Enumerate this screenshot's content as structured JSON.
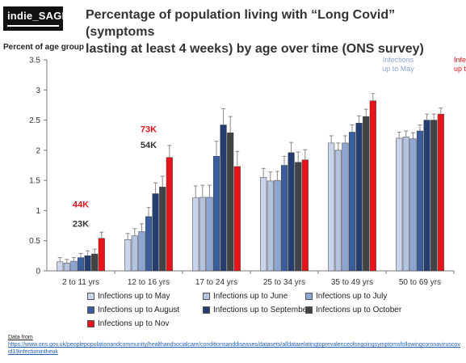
{
  "header": {
    "logo_text": "indie_SAGE",
    "title_line1": "Percentage of population living with “Long Covid” (symptoms",
    "title_line2": "lasting at least 4 weeks) by age over time (ONS survey)"
  },
  "chart_data": {
    "type": "bar",
    "title": "Percentage of population living with “Long Covid” (symptoms lasting at least 4 weeks) by age over time (ONS survey)",
    "ylabel": "Percent of age group",
    "xlabel": "",
    "ylim": [
      0,
      3.5
    ],
    "yticks": [
      "0",
      "0.5",
      "1",
      "1.5",
      "2",
      "2.5",
      "3",
      "3.5"
    ],
    "grid": false,
    "error_bars": true,
    "legend_position": "bottom",
    "categories": [
      "2 to 11 yrs",
      "12 to 16 yrs",
      "17 to 24 yrs",
      "25 to 34 yrs",
      "35 to 49 yrs",
      "50 to 69 yrs"
    ],
    "series": [
      {
        "name": "Infections up to May",
        "color": "#c9d5ea",
        "values": [
          0.15,
          0.52,
          1.21,
          1.55,
          2.12,
          2.2
        ],
        "err": [
          0.07,
          0.1,
          0.2,
          0.15,
          0.12,
          0.1
        ]
      },
      {
        "name": "Infections up to June",
        "color": "#b3c3e0",
        "values": [
          0.13,
          0.58,
          1.22,
          1.49,
          2.0,
          2.22
        ],
        "err": [
          0.06,
          0.12,
          0.2,
          0.15,
          0.12,
          0.1
        ]
      },
      {
        "name": "Infections up to July",
        "color": "#8ea6d3",
        "values": [
          0.16,
          0.65,
          1.22,
          1.5,
          2.12,
          2.19
        ],
        "err": [
          0.06,
          0.13,
          0.2,
          0.15,
          0.12,
          0.1
        ]
      },
      {
        "name": "Infections up to August",
        "color": "#3b5e9f",
        "values": [
          0.22,
          0.9,
          1.9,
          1.75,
          2.3,
          2.32
        ],
        "err": [
          0.07,
          0.15,
          0.25,
          0.15,
          0.12,
          0.1
        ]
      },
      {
        "name": "Infections up to September",
        "color": "#233e6f",
        "values": [
          0.25,
          1.28,
          2.42,
          1.96,
          2.45,
          2.5
        ],
        "err": [
          0.08,
          0.18,
          0.27,
          0.17,
          0.12,
          0.1
        ]
      },
      {
        "name": "Infections up to October",
        "color": "#404347",
        "values": [
          0.28,
          1.39,
          2.29,
          1.8,
          2.56,
          2.5
        ],
        "err": [
          0.08,
          0.18,
          0.27,
          0.17,
          0.12,
          0.1
        ]
      },
      {
        "name": "Infections up to Nov",
        "color": "#e8141b",
        "values": [
          0.54,
          1.88,
          1.73,
          1.84,
          2.82,
          2.6
        ],
        "err": [
          0.1,
          0.2,
          0.25,
          0.17,
          0.12,
          0.1
        ]
      }
    ],
    "annotations": [
      {
        "text": "44K",
        "color": "#e8141b",
        "category": 0,
        "y": 1.05
      },
      {
        "text": "23K",
        "color": "#333333",
        "category": 0,
        "y": 0.73
      },
      {
        "text": "73K",
        "color": "#e8141b",
        "category": 1,
        "y": 2.3
      },
      {
        "text": "54K",
        "color": "#333333",
        "category": 1,
        "y": 2.04
      }
    ],
    "corner_labels": [
      {
        "lines": [
          "Infections",
          "up to May"
        ],
        "color": "#8ea6d3"
      },
      {
        "lines": [
          "Infections",
          "up to Nov"
        ],
        "color": "#e8141b"
      }
    ]
  },
  "source": {
    "label": "Data from",
    "url": "https://www.ons.gov.uk/peoplepopulationandcommunity/healthandsocialcare/conditionsanddiseases/datasets/alldatarelatingtoprevalenceofongoingsymptomsfollowingcoronaviruscovid19infectionintheuk"
  }
}
